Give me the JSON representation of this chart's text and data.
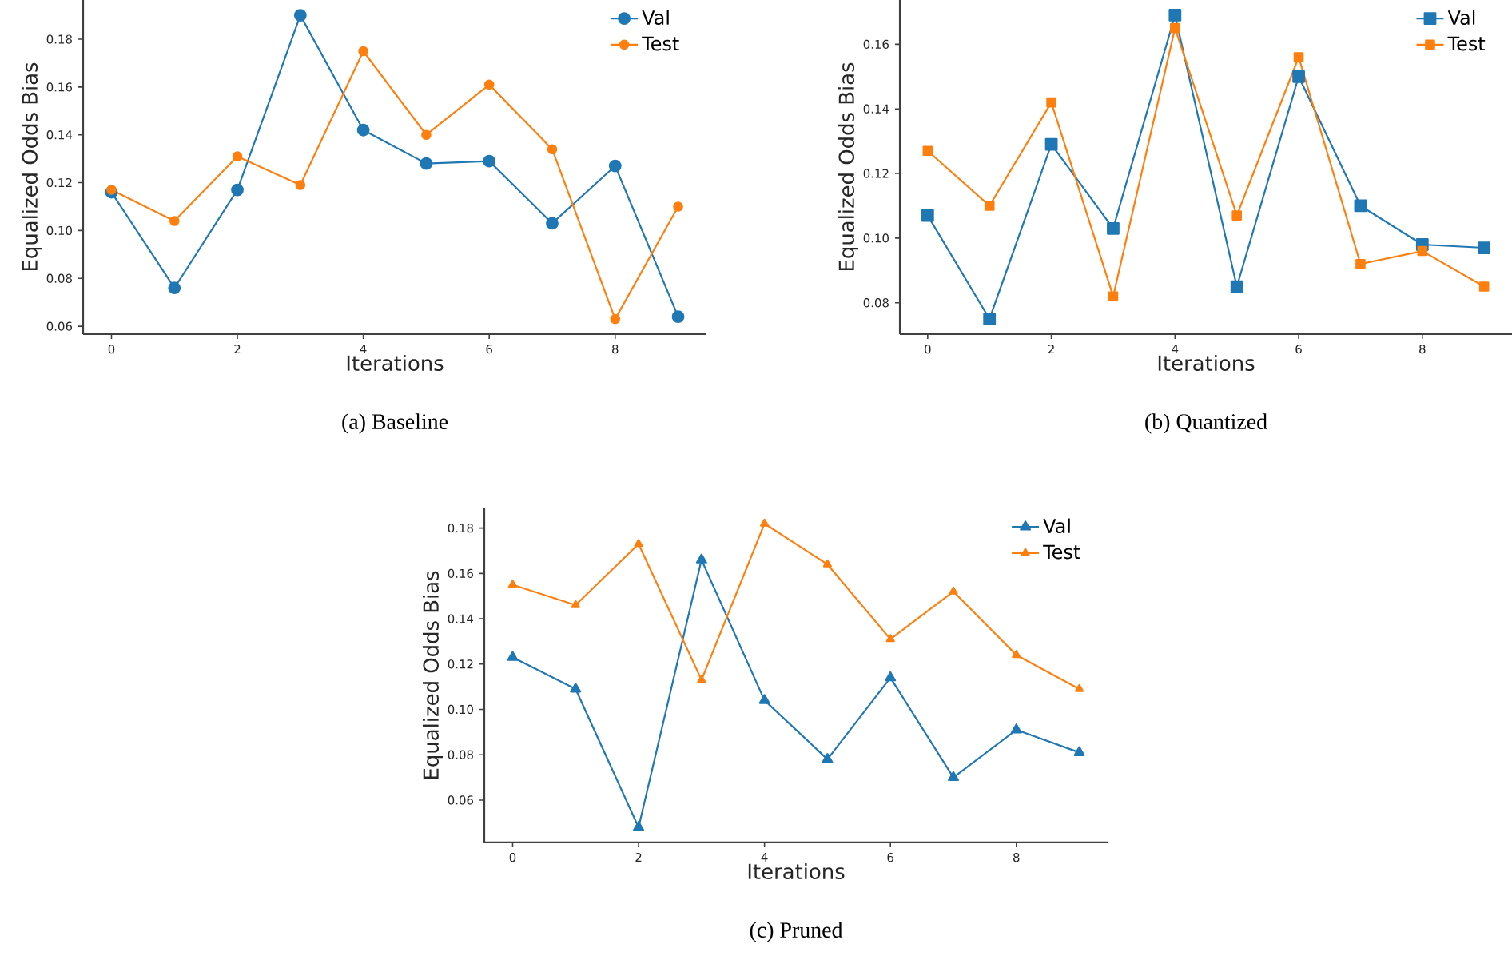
{
  "chart_data": [
    {
      "type": "line",
      "title": "(a)  Baseline",
      "xlabel": "Iterations",
      "ylabel": "Equalized Odds Bias",
      "x": [
        0,
        1,
        2,
        3,
        4,
        5,
        6,
        7,
        8,
        9
      ],
      "xlim": [
        -0.45,
        9.45
      ],
      "ylim": [
        0.0567,
        0.1964
      ],
      "xticks": [
        0,
        2,
        4,
        6,
        8
      ],
      "yticks": [
        {
          "value": 0.06,
          "label": "0.06"
        },
        {
          "value": 0.08,
          "label": "0.08"
        },
        {
          "value": 0.1,
          "label": "0.10"
        },
        {
          "value": 0.12,
          "label": "0.12"
        },
        {
          "value": 0.14,
          "label": "0.14"
        },
        {
          "value": 0.16,
          "label": "0.16"
        },
        {
          "value": 0.18,
          "label": "0.18"
        }
      ],
      "legend": "top right",
      "marker": "circle",
      "series": [
        {
          "name": "Val",
          "color": "#1f77b4",
          "values": [
            0.116,
            0.076,
            0.117,
            0.19,
            0.142,
            0.128,
            0.129,
            0.103,
            0.127,
            0.064
          ]
        },
        {
          "name": "Test",
          "color": "#ff7f0e",
          "values": [
            0.117,
            0.104,
            0.131,
            0.119,
            0.175,
            0.14,
            0.161,
            0.134,
            0.063,
            0.11
          ]
        }
      ]
    },
    {
      "type": "line",
      "title": "(b)  Quantized",
      "xlabel": "Iterations",
      "ylabel": "Equalized Odds Bias",
      "x": [
        0,
        1,
        2,
        3,
        4,
        5,
        6,
        7,
        8,
        9
      ],
      "xlim": [
        -0.45,
        9.45
      ],
      "ylim": [
        0.0703,
        0.1737
      ],
      "xticks": [
        0,
        2,
        4,
        6,
        8
      ],
      "yticks": [
        {
          "value": 0.08,
          "label": "0.08"
        },
        {
          "value": 0.1,
          "label": "0.10"
        },
        {
          "value": 0.12,
          "label": "0.12"
        },
        {
          "value": 0.14,
          "label": "0.14"
        },
        {
          "value": 0.16,
          "label": "0.16"
        }
      ],
      "legend": "top right",
      "marker": "square",
      "series": [
        {
          "name": "Val",
          "color": "#1f77b4",
          "values": [
            0.107,
            0.075,
            0.129,
            0.103,
            0.169,
            0.085,
            0.15,
            0.11,
            0.098,
            0.097
          ]
        },
        {
          "name": "Test",
          "color": "#ff7f0e",
          "values": [
            0.127,
            0.11,
            0.142,
            0.082,
            0.165,
            0.107,
            0.156,
            0.092,
            0.096,
            0.085
          ]
        }
      ]
    },
    {
      "type": "line",
      "title": "(c)  Pruned",
      "xlabel": "Iterations",
      "ylabel": "Equalized Odds Bias",
      "x": [
        0,
        1,
        2,
        3,
        4,
        5,
        6,
        7,
        8,
        9
      ],
      "xlim": [
        -0.45,
        9.45
      ],
      "ylim": [
        0.0413,
        0.1887
      ],
      "xticks": [
        0,
        2,
        4,
        6,
        8
      ],
      "yticks": [
        {
          "value": 0.06,
          "label": "0.06"
        },
        {
          "value": 0.08,
          "label": "0.08"
        },
        {
          "value": 0.1,
          "label": "0.10"
        },
        {
          "value": 0.12,
          "label": "0.12"
        },
        {
          "value": 0.14,
          "label": "0.14"
        },
        {
          "value": 0.16,
          "label": "0.16"
        },
        {
          "value": 0.18,
          "label": "0.18"
        }
      ],
      "legend": "top right",
      "marker": "triangle",
      "series": [
        {
          "name": "Val",
          "color": "#1f77b4",
          "values": [
            0.123,
            0.109,
            0.048,
            0.166,
            0.104,
            0.078,
            0.114,
            0.07,
            0.091,
            0.081
          ]
        },
        {
          "name": "Test",
          "color": "#ff7f0e",
          "values": [
            0.155,
            0.146,
            0.173,
            0.113,
            0.182,
            0.164,
            0.131,
            0.152,
            0.124,
            0.109
          ]
        }
      ]
    }
  ]
}
